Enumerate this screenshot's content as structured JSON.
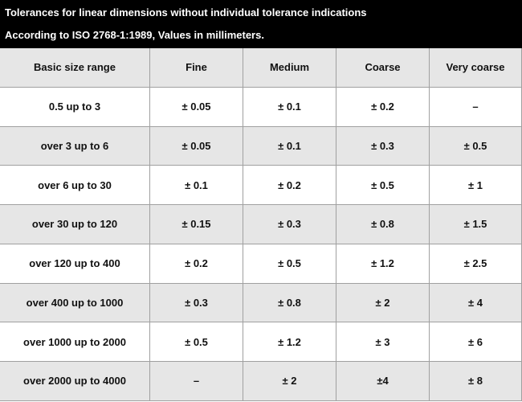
{
  "header": {
    "title": "Tolerances for linear dimensions without individual tolerance indications",
    "subtitle": "According to ISO 2768-1:1989, Values in millimeters."
  },
  "table": {
    "columns": [
      "Basic size range",
      "Fine",
      "Medium",
      "Coarse",
      "Very coarse"
    ],
    "rows": [
      [
        "0.5 up to 3",
        "± 0.05",
        "± 0.1",
        "± 0.2",
        "–"
      ],
      [
        "over 3 up to 6",
        "± 0.05",
        "± 0.1",
        "± 0.3",
        "± 0.5"
      ],
      [
        "over 6 up to 30",
        "± 0.1",
        "± 0.2",
        "± 0.5",
        "± 1"
      ],
      [
        "over 30 up to 120",
        "± 0.15",
        "± 0.3",
        "± 0.8",
        "± 1.5"
      ],
      [
        "over 120 up to 400",
        "± 0.2",
        "± 0.5",
        "± 1.2",
        "± 2.5"
      ],
      [
        "over 400 up to 1000",
        "± 0.3",
        "± 0.8",
        "± 2",
        "± 4"
      ],
      [
        "over 1000 up to 2000",
        "± 0.5",
        "± 1.2",
        "± 3",
        "± 6"
      ],
      [
        "over 2000 up to 4000",
        "–",
        "± 2",
        "±4",
        "± 8"
      ]
    ]
  }
}
